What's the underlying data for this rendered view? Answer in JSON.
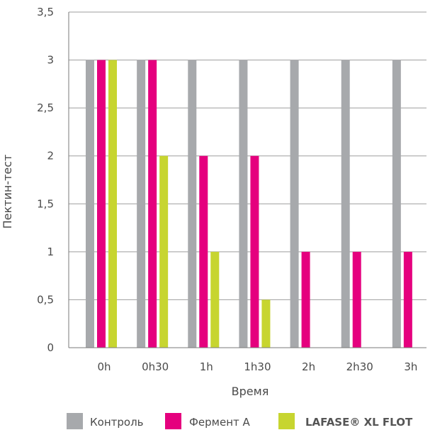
{
  "chart_data": {
    "type": "bar",
    "xlabel": "Время",
    "ylabel": "Пектин-тест",
    "ylim": [
      0,
      3.5
    ],
    "yticks": [
      0,
      0.5,
      1,
      1.5,
      2,
      2.5,
      3,
      3.5
    ],
    "ytick_labels": [
      "0",
      "0,5",
      "1",
      "1,5",
      "2",
      "2,5",
      "3",
      "3,5"
    ],
    "categories": [
      "0h",
      "0h30",
      "1h",
      "1h30",
      "2h",
      "2h30",
      "3h"
    ],
    "series": [
      {
        "name": "Контроль",
        "color": "#a7a9ac",
        "values": [
          3,
          3,
          3,
          3,
          3,
          3,
          3
        ]
      },
      {
        "name": "Фермент A",
        "color": "#e5007e",
        "values": [
          3,
          3,
          2,
          2,
          1,
          1,
          1
        ]
      },
      {
        "name": "LAFASE® XL FLOT",
        "color": "#c7d530",
        "values": [
          3,
          2,
          1,
          0.5,
          0,
          0,
          0
        ]
      }
    ],
    "grid": true,
    "legend_position": "bottom"
  }
}
